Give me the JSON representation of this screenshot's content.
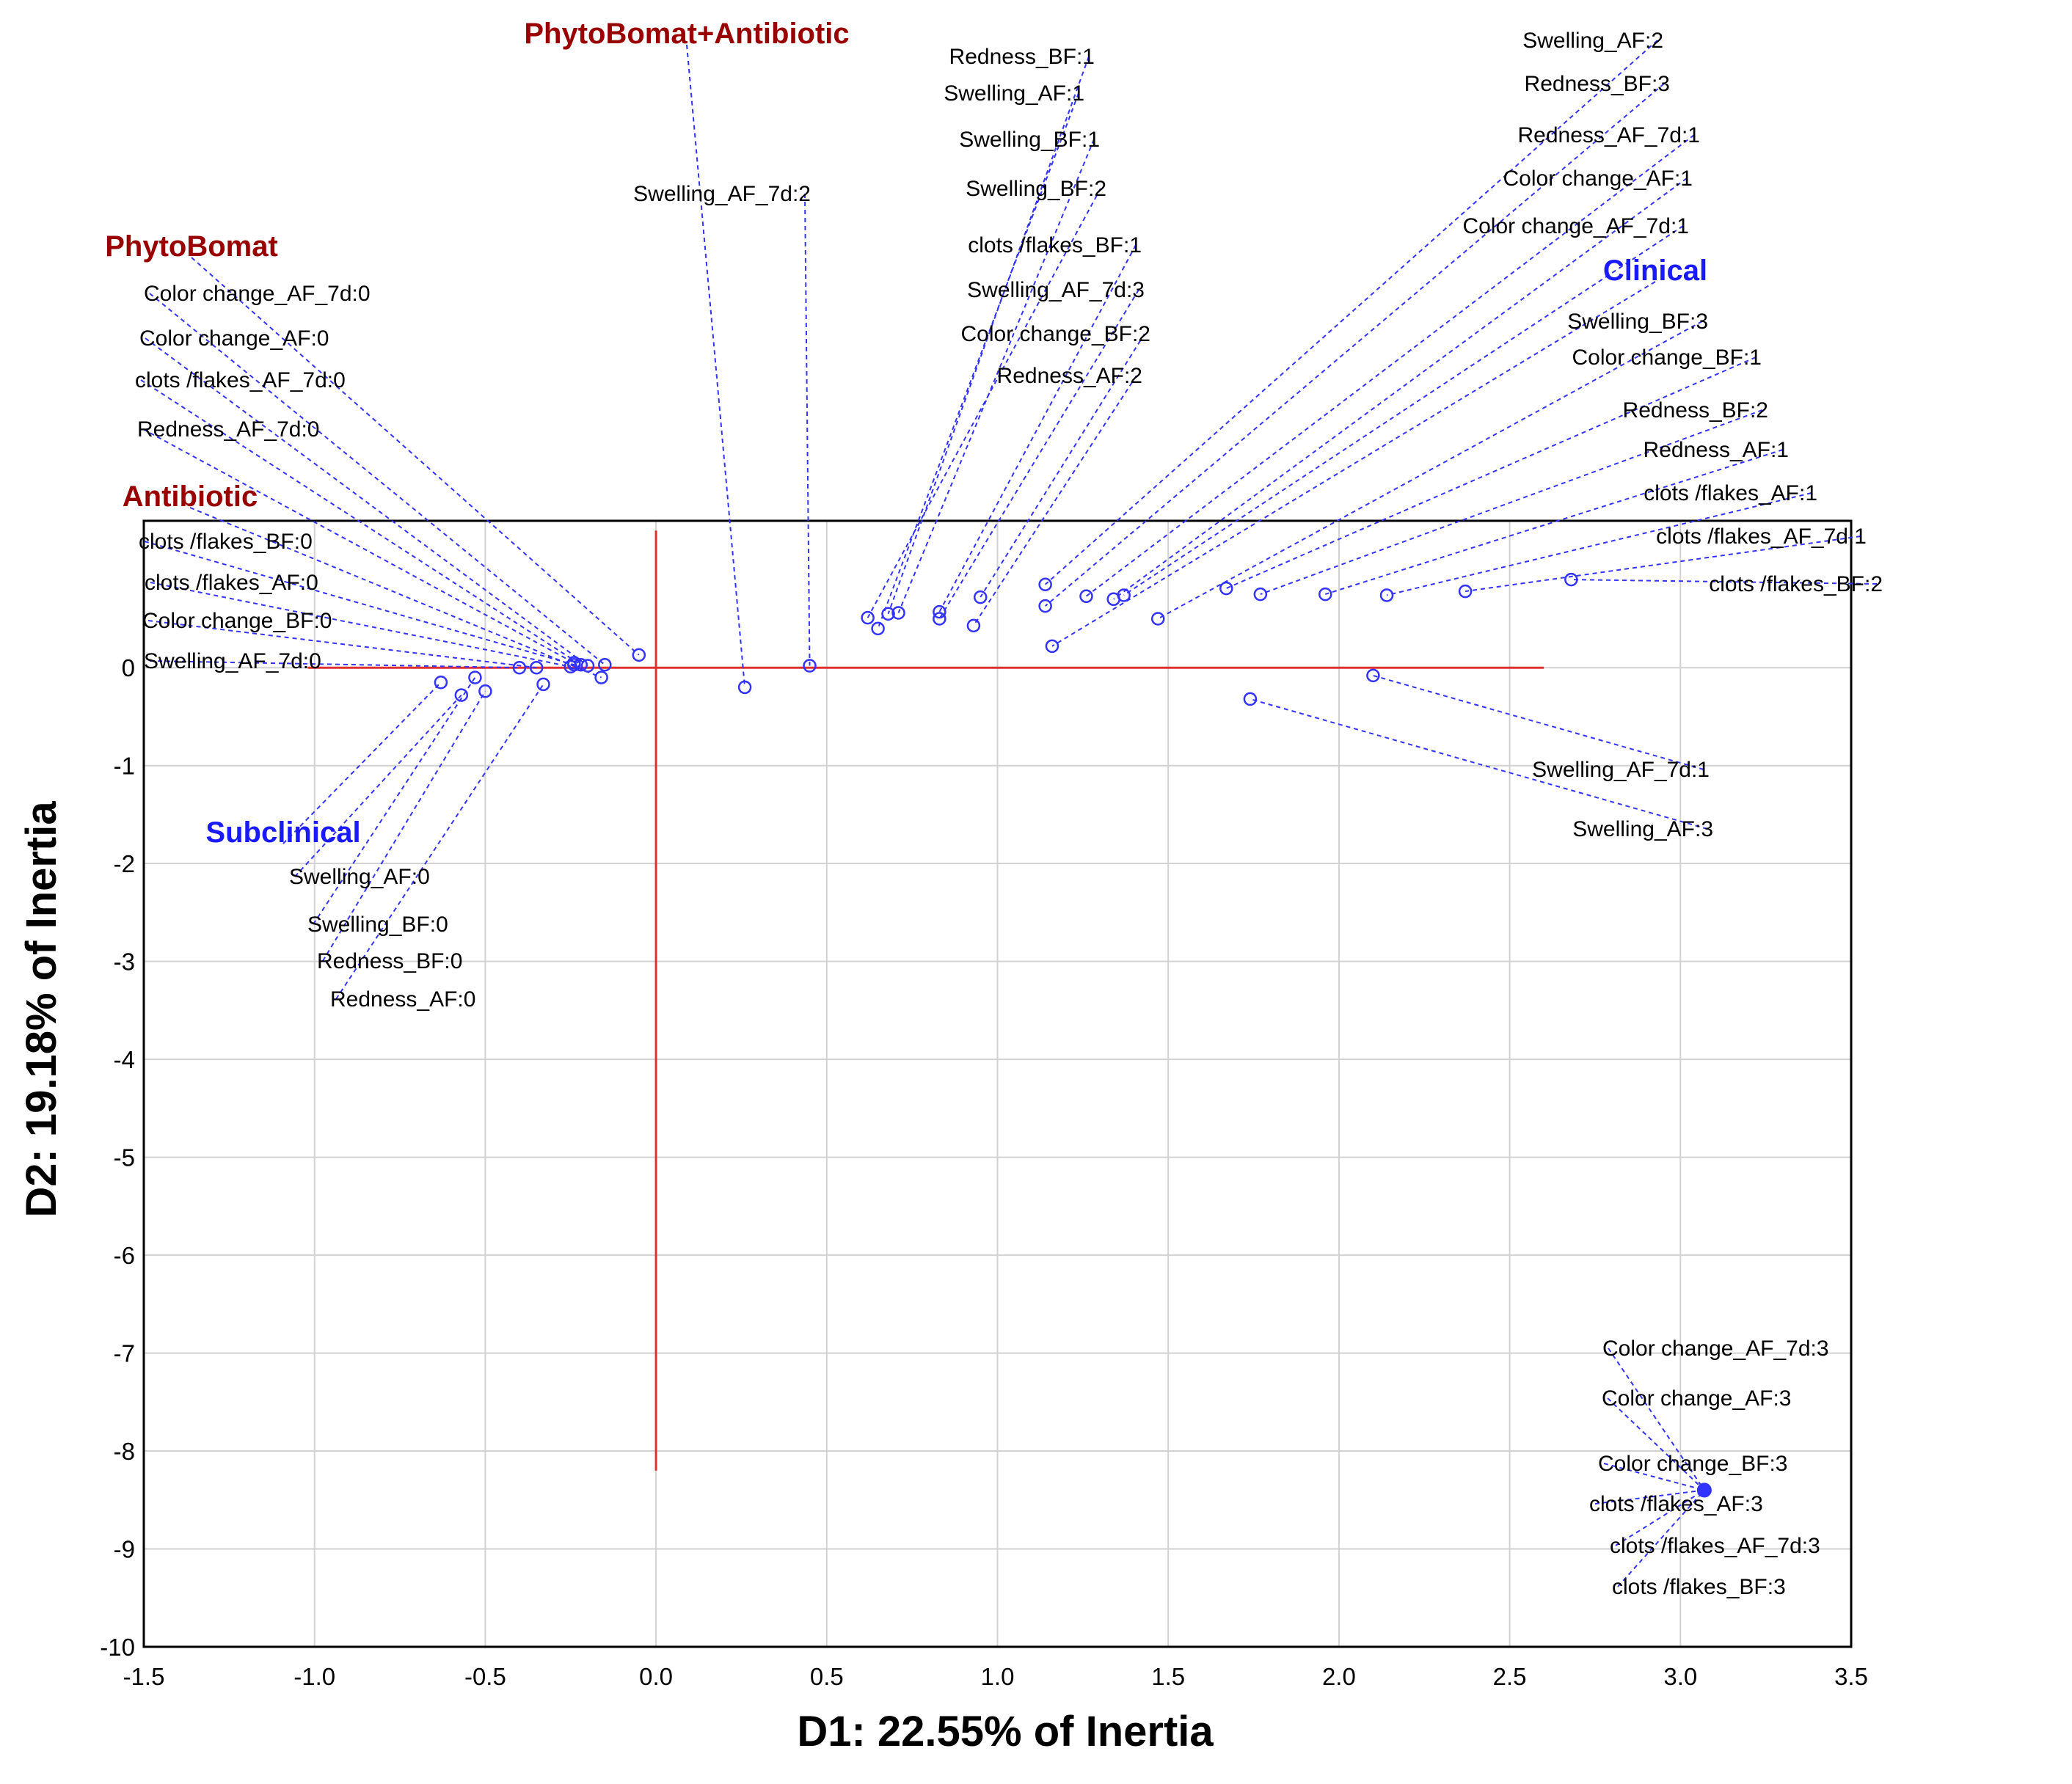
{
  "chart_data": {
    "type": "scatter",
    "subtype": "correspondence-analysis-biplot",
    "xlabel": "D1: 22.55% of Inertia",
    "ylabel": "D2: 19.18% of Inertia",
    "xlim": [
      -1.5,
      3.5
    ],
    "ylim": [
      -10,
      1.5
    ],
    "x_ticks": [
      -1.5,
      -1.0,
      -0.5,
      0.0,
      0.5,
      1.0,
      1.5,
      2.0,
      2.5,
      3.0,
      3.5
    ],
    "x_tick_labels": [
      "-1.5",
      "-1.0",
      "-0.5",
      "0.0",
      "0.5",
      "1.0",
      "1.5",
      "2.0",
      "2.5",
      "3.0",
      "3.5"
    ],
    "y_ticks": [
      0,
      -1,
      -2,
      -3,
      -4,
      -5,
      -6,
      -7,
      -8,
      -9,
      -10
    ],
    "y_tick_labels": [
      "0",
      "-1",
      "-2",
      "-3",
      "-4",
      "-5",
      "-6",
      "-7",
      "-8",
      "-9",
      "-10"
    ],
    "grid": true,
    "colors": {
      "points": "#3333ff",
      "leader": "#3333ff",
      "origin_lines": "#e03030",
      "treatment_label": "#990000",
      "status_label": "#1a1aff"
    },
    "reference_lines": {
      "horizontal": {
        "y": 0,
        "x_from": -1.02,
        "x_to": 2.6
      },
      "vertical": {
        "x": 0,
        "y_from": 1.4,
        "y_to": -8.2
      }
    },
    "points": [
      {
        "label": "PhytoBomat+Antibiotic",
        "x": 0.26,
        "y": -0.2,
        "kind": "group"
      },
      {
        "label": "Redness_BF:1",
        "x": 0.68,
        "y": 0.55
      },
      {
        "label": "Swelling_AF:1",
        "x": 0.65,
        "y": 0.4
      },
      {
        "label": "Swelling_BF:1",
        "x": 0.71,
        "y": 0.56
      },
      {
        "label": "Swelling_AF_7d:2",
        "x": 0.45,
        "y": 0.02
      },
      {
        "label": "Swelling_BF:2",
        "x": 0.62,
        "y": 0.51
      },
      {
        "label": "clots /flakes_BF:1",
        "x": 0.83,
        "y": 0.57
      },
      {
        "label": "Swelling_AF_7d:3",
        "x": 0.83,
        "y": 0.5
      },
      {
        "label": "Color change_BF:2",
        "x": 0.95,
        "y": 0.72
      },
      {
        "label": "Redness_AF:2",
        "x": 0.93,
        "y": 0.43
      },
      {
        "label": "Swelling_AF:2",
        "x": 1.14,
        "y": 0.85
      },
      {
        "label": "Redness_BF:3",
        "x": 1.14,
        "y": 0.63
      },
      {
        "label": "Redness_AF_7d:1",
        "x": 1.26,
        "y": 0.73
      },
      {
        "label": "Color change_AF:1",
        "x": 1.34,
        "y": 0.7
      },
      {
        "label": "Color change_AF_7d:1",
        "x": 1.37,
        "y": 0.74
      },
      {
        "label": "Clinical",
        "x": 1.16,
        "y": 0.22,
        "kind": "group"
      },
      {
        "label": "Swelling_BF:3",
        "x": 1.47,
        "y": 0.5
      },
      {
        "label": "Color change_BF:1",
        "x": 1.67,
        "y": 0.81
      },
      {
        "label": "Redness_BF:2",
        "x": 1.77,
        "y": 0.75
      },
      {
        "label": "Redness_AF:1",
        "x": 1.96,
        "y": 0.75
      },
      {
        "label": "clots /flakes_AF:1",
        "x": 2.14,
        "y": 0.74
      },
      {
        "label": "clots /flakes_AF_7d:1",
        "x": 2.37,
        "y": 0.78
      },
      {
        "label": "clots /flakes_BF:2",
        "x": 2.68,
        "y": 0.9
      },
      {
        "label": "Swelling_AF_7d:1",
        "x": 2.1,
        "y": -0.08
      },
      {
        "label": "Swelling_AF:3",
        "x": 1.74,
        "y": -0.32
      },
      {
        "label": "PhytoBomat",
        "x": -0.05,
        "y": 0.13,
        "kind": "group"
      },
      {
        "label": "Color change_AF_7d:0",
        "x": -0.15,
        "y": 0.03
      },
      {
        "label": "Color change_AF:0",
        "x": -0.2,
        "y": 0.02
      },
      {
        "label": "clots /flakes_AF_7d:0",
        "x": -0.22,
        "y": 0.03
      },
      {
        "label": "Redness_AF_7d:0",
        "x": -0.24,
        "y": 0.05
      },
      {
        "label": "Antibiotic",
        "x": -0.16,
        "y": -0.1,
        "kind": "group"
      },
      {
        "label": "clots /flakes_BF:0",
        "x": -0.24,
        "y": 0.03
      },
      {
        "label": "clots /flakes_AF:0",
        "x": -0.25,
        "y": 0.01
      },
      {
        "label": "Color change_BF:0",
        "x": -0.35,
        "y": 0.0
      },
      {
        "label": "Swelling_AF_7d:0",
        "x": -0.4,
        "y": 0.0
      },
      {
        "label": "Subclinical",
        "x": -0.63,
        "y": -0.15,
        "kind": "group"
      },
      {
        "label": "Swelling_AF:0",
        "x": -0.57,
        "y": -0.28
      },
      {
        "label": "Swelling_BF:0",
        "x": -0.53,
        "y": -0.1
      },
      {
        "label": "Redness_BF:0",
        "x": -0.5,
        "y": -0.24
      },
      {
        "label": "Redness_AF:0",
        "x": -0.33,
        "y": -0.17
      },
      {
        "label": "Color change_AF_7d:3",
        "x": 3.07,
        "y": -8.4
      },
      {
        "label": "Color change_AF:3",
        "x": 3.07,
        "y": -8.4
      },
      {
        "label": "Color change_BF:3",
        "x": 3.07,
        "y": -8.4
      },
      {
        "label": "clots /flakes_AF:3",
        "x": 3.07,
        "y": -8.4
      },
      {
        "label": "clots /flakes_AF_7d:3",
        "x": 3.07,
        "y": -8.4
      },
      {
        "label": "clots /flakes_BF:3",
        "x": 3.07,
        "y": -8.4
      }
    ]
  }
}
